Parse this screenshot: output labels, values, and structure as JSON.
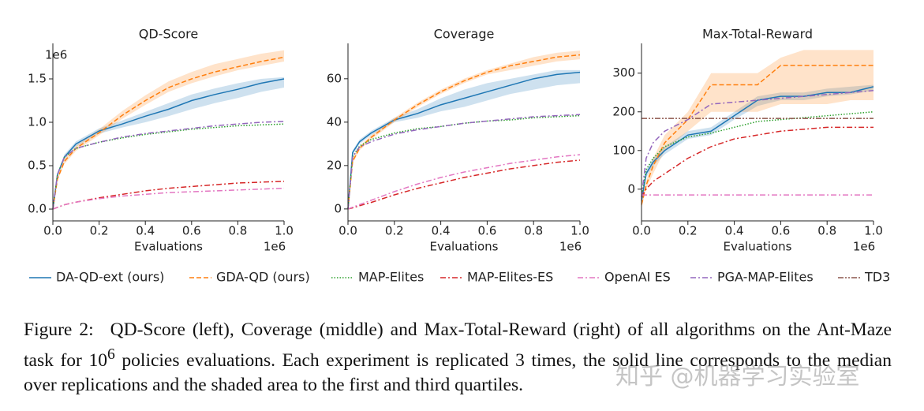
{
  "chart_data": [
    {
      "type": "line",
      "title": "QD-Score",
      "x_label": "Evaluations",
      "x_offset_label": "1e6",
      "y_offset_label": "1e6",
      "x": [
        0,
        20000,
        50000,
        100000,
        200000,
        300000,
        400000,
        500000,
        600000,
        700000,
        800000,
        900000,
        1000000
      ],
      "xlim": [
        0,
        1000000
      ],
      "xticks": [
        {
          "value": 0,
          "label": "0.0"
        },
        {
          "value": 200000,
          "label": "0.2"
        },
        {
          "value": 400000,
          "label": "0.4"
        },
        {
          "value": 600000,
          "label": "0.6"
        },
        {
          "value": 800000,
          "label": "0.8"
        },
        {
          "value": 1000000,
          "label": "1.0"
        }
      ],
      "ylim": [
        -136000,
        1909000
      ],
      "yticks": [
        {
          "value": 0,
          "label": "0.0"
        },
        {
          "value": 500000,
          "label": "0.5"
        },
        {
          "value": 1000000,
          "label": "1.0"
        },
        {
          "value": 1500000,
          "label": "1.5"
        }
      ],
      "series": [
        {
          "name": "DA-QD-ext (ours)",
          "color": "#1f77b4",
          "linestyle": "solid",
          "values": [
            0,
            400000,
            600000,
            750000,
            900000,
            980000,
            1070000,
            1150000,
            1250000,
            1320000,
            1380000,
            1450000,
            1500000
          ],
          "lower": [
            0,
            380000,
            570000,
            720000,
            870000,
            940000,
            1000000,
            1070000,
            1150000,
            1220000,
            1280000,
            1350000,
            1400000
          ],
          "upper": [
            0,
            420000,
            630000,
            780000,
            930000,
            1020000,
            1120000,
            1220000,
            1320000,
            1390000,
            1450000,
            1500000,
            1520000
          ]
        },
        {
          "name": "GDA-QD (ours)",
          "color": "#ff7f0e",
          "linestyle": "dashed",
          "values": [
            0,
            350000,
            550000,
            700000,
            880000,
            1080000,
            1250000,
            1400000,
            1500000,
            1580000,
            1640000,
            1700000,
            1750000
          ],
          "lower": [
            0,
            330000,
            520000,
            670000,
            850000,
            1040000,
            1200000,
            1350000,
            1450000,
            1530000,
            1600000,
            1650000,
            1700000
          ],
          "upper": [
            0,
            370000,
            580000,
            730000,
            920000,
            1130000,
            1310000,
            1470000,
            1580000,
            1670000,
            1730000,
            1790000,
            1830000
          ]
        },
        {
          "name": "MAP-Elites",
          "color": "#2ca02c",
          "linestyle": "dotted",
          "values": [
            0,
            400000,
            600000,
            700000,
            770000,
            820000,
            860000,
            890000,
            920000,
            940000,
            960000,
            970000,
            980000
          ]
        },
        {
          "name": "MAP-Elites-ES",
          "color": "#d62728",
          "linestyle": "dashdot",
          "values": [
            0,
            20000,
            50000,
            80000,
            130000,
            170000,
            210000,
            240000,
            260000,
            280000,
            300000,
            310000,
            320000
          ]
        },
        {
          "name": "OpenAI ES",
          "color": "#e377c2",
          "linestyle": "dashdot",
          "values": [
            0,
            20000,
            50000,
            80000,
            120000,
            150000,
            170000,
            190000,
            200000,
            210000,
            220000,
            230000,
            240000
          ]
        },
        {
          "name": "PGA-MAP-Elites",
          "color": "#9467bd",
          "linestyle": "dashdot",
          "values": [
            0,
            400000,
            600000,
            700000,
            770000,
            830000,
            870000,
            900000,
            930000,
            960000,
            980000,
            1000000,
            1010000
          ]
        }
      ]
    },
    {
      "type": "line",
      "title": "Coverage",
      "x_label": "Evaluations",
      "x_offset_label": "1e6",
      "x": [
        0,
        20000,
        50000,
        100000,
        200000,
        300000,
        400000,
        500000,
        600000,
        700000,
        800000,
        900000,
        1000000
      ],
      "xlim": [
        0,
        1000000
      ],
      "xticks": [
        {
          "value": 0,
          "label": "0.0"
        },
        {
          "value": 200000,
          "label": "0.2"
        },
        {
          "value": 400000,
          "label": "0.4"
        },
        {
          "value": 600000,
          "label": "0.6"
        },
        {
          "value": 800000,
          "label": "0.8"
        },
        {
          "value": 1000000,
          "label": "1.0"
        }
      ],
      "ylim": [
        -5.5,
        76.3
      ],
      "yticks": [
        0,
        20,
        40,
        60
      ],
      "series": [
        {
          "name": "DA-QD-ext (ours)",
          "color": "#1f77b4",
          "linestyle": "solid",
          "values": [
            0,
            26,
            31,
            35,
            41,
            44,
            48,
            51,
            54,
            57,
            60,
            62,
            63
          ],
          "lower": [
            0,
            25,
            30,
            34,
            40,
            42,
            45,
            47,
            50,
            53,
            55,
            57,
            58
          ],
          "upper": [
            0,
            27,
            32,
            36,
            42,
            46,
            51,
            55,
            58,
            60,
            62,
            64,
            64
          ]
        },
        {
          "name": "GDA-QD (ours)",
          "color": "#ff7f0e",
          "linestyle": "dashed",
          "values": [
            0,
            22,
            28,
            33,
            41,
            48,
            54,
            59,
            63,
            66,
            68,
            70,
            71
          ],
          "lower": [
            0,
            21,
            27,
            32,
            40,
            47,
            53,
            58,
            62,
            64,
            66,
            68,
            69
          ],
          "upper": [
            0,
            23,
            29,
            34,
            42,
            49,
            55,
            60,
            64,
            67,
            70,
            72,
            73
          ]
        },
        {
          "name": "MAP-Elites",
          "color": "#2ca02c",
          "linestyle": "dotted",
          "values": [
            0,
            24,
            29,
            32,
            35,
            37,
            38,
            39.5,
            40.5,
            41,
            42,
            42.5,
            43
          ]
        },
        {
          "name": "MAP-Elites-ES",
          "color": "#d62728",
          "linestyle": "dashdot",
          "values": [
            0,
            0.5,
            1.5,
            3,
            6.5,
            9.5,
            12,
            14.5,
            16.5,
            18.5,
            20,
            21.5,
            22.5
          ]
        },
        {
          "name": "OpenAI ES",
          "color": "#e377c2",
          "linestyle": "dashdot",
          "values": [
            0,
            0.8,
            2,
            4,
            8,
            11.5,
            14.5,
            17,
            19,
            21,
            22.5,
            24,
            25
          ]
        },
        {
          "name": "PGA-MAP-Elites",
          "color": "#9467bd",
          "linestyle": "dashdot",
          "values": [
            0,
            24,
            28.5,
            31,
            34.5,
            36.5,
            38,
            39.5,
            40.5,
            41.5,
            42.5,
            43,
            43.5
          ]
        }
      ]
    },
    {
      "type": "line",
      "title": "Max-Total-Reward",
      "x_label": "Evaluations",
      "x_offset_label": "1e6",
      "x": [
        0,
        20000,
        50000,
        100000,
        200000,
        300000,
        400000,
        500000,
        600000,
        700000,
        800000,
        900000,
        1000000
      ],
      "xlim": [
        0,
        1000000
      ],
      "xticks": [
        {
          "value": 0,
          "label": "0.0"
        },
        {
          "value": 200000,
          "label": "0.2"
        },
        {
          "value": 400000,
          "label": "0.4"
        },
        {
          "value": 600000,
          "label": "0.6"
        },
        {
          "value": 800000,
          "label": "0.8"
        },
        {
          "value": 1000000,
          "label": "1.0"
        }
      ],
      "ylim": [
        -82,
        377
      ],
      "yticks": [
        0,
        100,
        200,
        300
      ],
      "series": [
        {
          "name": "DA-QD-ext (ours)",
          "color": "#1f77b4",
          "linestyle": "solid",
          "values": [
            -30,
            40,
            70,
            100,
            140,
            150,
            190,
            230,
            240,
            240,
            250,
            250,
            265
          ],
          "lower": [
            -40,
            30,
            60,
            90,
            130,
            140,
            180,
            215,
            230,
            230,
            240,
            245,
            255
          ],
          "upper": [
            -20,
            50,
            80,
            110,
            150,
            160,
            200,
            240,
            250,
            250,
            260,
            265,
            270
          ]
        },
        {
          "name": "GDA-QD (ours)",
          "color": "#ff7f0e",
          "linestyle": "dashed",
          "values": [
            -40,
            10,
            60,
            120,
            180,
            270,
            270,
            270,
            320,
            320,
            320,
            320,
            320
          ],
          "lower": [
            -50,
            0,
            40,
            100,
            150,
            200,
            200,
            200,
            220,
            220,
            220,
            230,
            230
          ],
          "upper": [
            -30,
            20,
            80,
            140,
            200,
            300,
            300,
            300,
            340,
            360,
            360,
            360,
            360
          ]
        },
        {
          "name": "MAP-Elites",
          "color": "#2ca02c",
          "linestyle": "dotted",
          "values": [
            -20,
            50,
            80,
            110,
            135,
            145,
            160,
            175,
            180,
            185,
            190,
            195,
            200
          ]
        },
        {
          "name": "MAP-Elites-ES",
          "color": "#d62728",
          "linestyle": "dashdot",
          "values": [
            -20,
            0,
            20,
            40,
            80,
            110,
            130,
            140,
            150,
            155,
            160,
            160,
            160
          ]
        },
        {
          "name": "OpenAI ES",
          "color": "#e377c2",
          "linestyle": "dashdot",
          "values": [
            -15,
            -15,
            -15,
            -15,
            -15,
            -15,
            -15,
            -15,
            -15,
            -15,
            -15,
            -15,
            -15
          ]
        },
        {
          "name": "PGA-MAP-Elites",
          "color": "#9467bd",
          "linestyle": "dashdot",
          "values": [
            -20,
            80,
            120,
            150,
            180,
            220,
            225,
            230,
            235,
            240,
            245,
            250,
            255
          ]
        },
        {
          "name": "TD3",
          "color": "#8c564b",
          "linestyle": "dashdotdot",
          "values": [
            183,
            183,
            183,
            183,
            183,
            183,
            183,
            183,
            183,
            183,
            183,
            183,
            183
          ]
        }
      ]
    }
  ],
  "caption": {
    "label": "Figure 2:",
    "text_before": "QD-Score (left), Coverage (middle) and Max-Total-Reward (right) of all algorithms on the Ant-Maze task for 10",
    "superscript": "6",
    "text_after": " policies evaluations. Each experiment is replicated 3 times, the solid line corresponds to the median over replications and the shaded area to the first and third quartiles."
  },
  "watermark": "知乎 @机器学习实验室"
}
